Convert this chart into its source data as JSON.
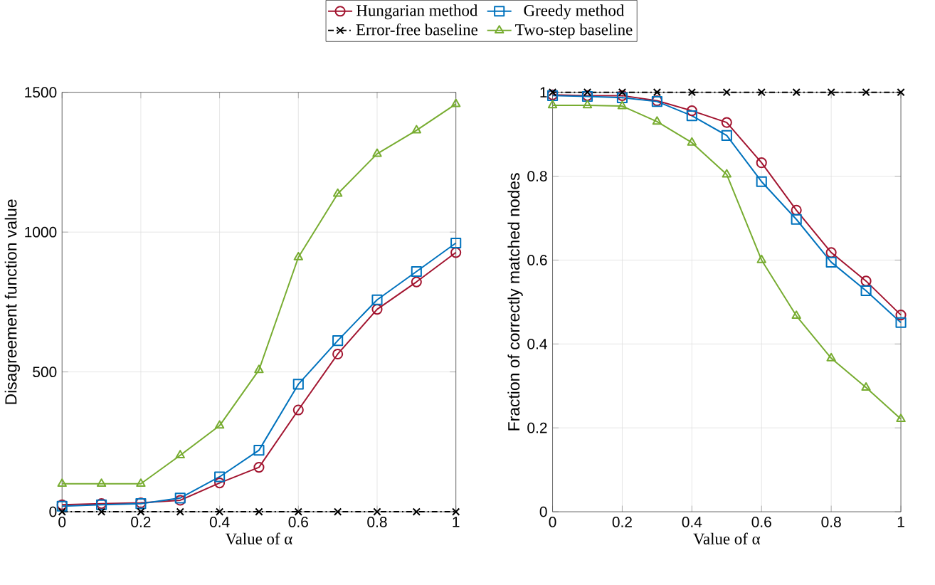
{
  "chart_data": [
    {
      "type": "line",
      "xlabel": "Value of α",
      "ylabel": "Disagreement function value",
      "x": [
        0,
        0.1,
        0.2,
        0.3,
        0.4,
        0.5,
        0.6,
        0.7,
        0.8,
        0.9,
        1
      ],
      "xlim": [
        0,
        1
      ],
      "xticks": [
        0,
        0.2,
        0.4,
        0.6,
        0.8,
        1
      ],
      "ylim": [
        0,
        1500
      ],
      "yticks": [
        0,
        500,
        1000,
        1500
      ],
      "grid": true,
      "legend": "top",
      "series": [
        {
          "name": "Hungarian method",
          "color": "#a2142f",
          "marker": "circle",
          "line_style": "solid",
          "values": [
            25,
            29,
            32,
            41,
            103,
            159,
            364,
            564,
            724,
            822,
            927
          ]
        },
        {
          "name": "Greedy method",
          "color": "#0072bd",
          "marker": "square",
          "line_style": "solid",
          "values": [
            20,
            25,
            29,
            49,
            125,
            220,
            456,
            612,
            758,
            859,
            961
          ]
        },
        {
          "name": "Error-free baseline",
          "color": "#000000",
          "marker": "cross",
          "line_style": "dashed",
          "values": [
            0,
            0,
            0,
            0,
            0,
            0,
            0,
            0,
            0,
            0,
            0
          ]
        },
        {
          "name": "Two-step baseline",
          "color": "#77ac30",
          "marker": "triangle",
          "line_style": "solid",
          "values": [
            100,
            100,
            100,
            202,
            308,
            507,
            910,
            1137,
            1280,
            1364,
            1458
          ]
        }
      ]
    },
    {
      "type": "line",
      "xlabel": "Value of α",
      "ylabel": "Fraction of correctly matched nodes",
      "x": [
        0,
        0.1,
        0.2,
        0.3,
        0.4,
        0.5,
        0.6,
        0.7,
        0.8,
        0.9,
        1
      ],
      "xlim": [
        0,
        1
      ],
      "xticks": [
        0,
        0.2,
        0.4,
        0.6,
        0.8,
        1
      ],
      "ylim": [
        0,
        1
      ],
      "yticks": [
        0,
        0.2,
        0.4,
        0.6,
        0.8,
        1
      ],
      "grid": true,
      "series": [
        {
          "color": "#a2142f",
          "marker": "circle",
          "line_style": "solid",
          "values": [
            0.994,
            0.992,
            0.992,
            0.98,
            0.956,
            0.928,
            0.832,
            0.719,
            0.618,
            0.55,
            0.469
          ]
        },
        {
          "color": "#0072bd",
          "marker": "square",
          "line_style": "solid",
          "values": [
            0.992,
            0.99,
            0.987,
            0.978,
            0.944,
            0.897,
            0.787,
            0.697,
            0.595,
            0.527,
            0.451
          ]
        },
        {
          "color": "#000000",
          "marker": "cross",
          "line_style": "dashed",
          "values": [
            1,
            1,
            1,
            1,
            1,
            1,
            1,
            1,
            1,
            1,
            1
          ]
        },
        {
          "color": "#77ac30",
          "marker": "triangle",
          "line_style": "solid",
          "values": [
            0.969,
            0.969,
            0.967,
            0.93,
            0.88,
            0.804,
            0.6,
            0.467,
            0.366,
            0.296,
            0.221
          ]
        }
      ]
    }
  ]
}
